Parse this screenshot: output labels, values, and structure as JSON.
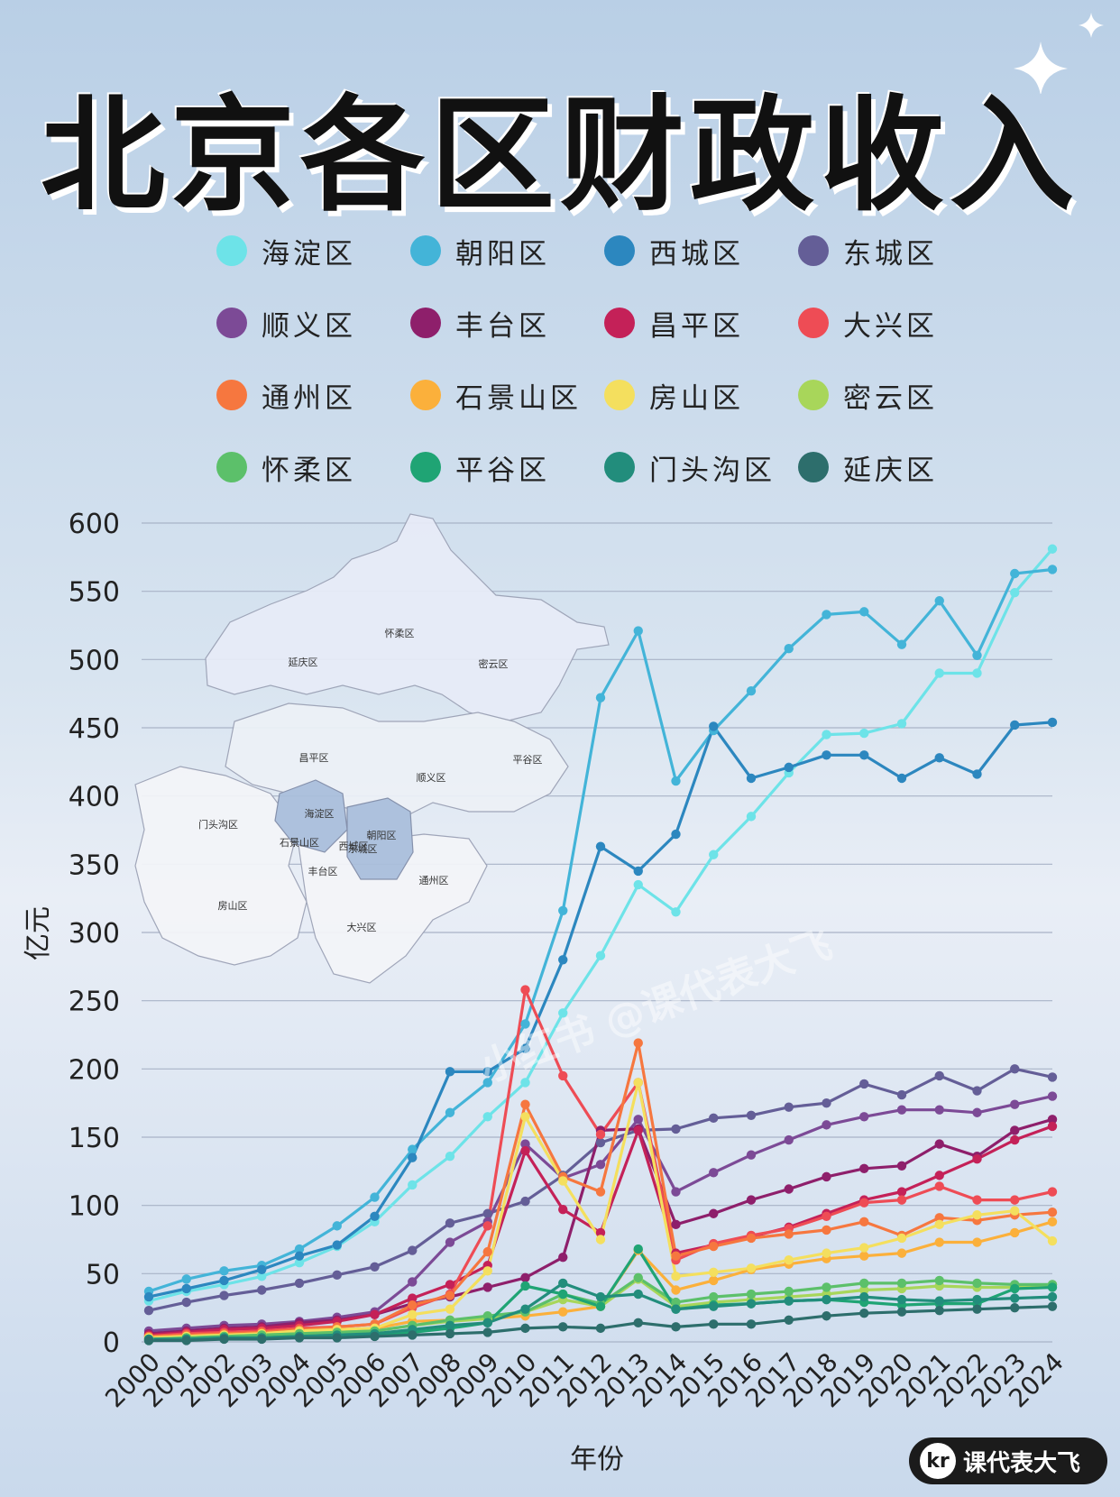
{
  "title": "北京各区财政收入",
  "watermark": "小红书 @课代表大飞",
  "logo": {
    "badge": "kr",
    "brand": "课代表大飞"
  },
  "map_labels": [
    "延庆区",
    "怀柔区",
    "密云区",
    "昌平区",
    "平谷区",
    "顺义区",
    "门头沟区",
    "海淀区",
    "朝阳区",
    "石景山区",
    "西城区",
    "东城区",
    "丰台区",
    "通州区",
    "房山区",
    "大兴区"
  ],
  "chart_data": {
    "type": "line",
    "xlabel": "年份",
    "ylabel": "亿元",
    "ylim": [
      0,
      600
    ],
    "yticks": [
      0,
      50,
      100,
      150,
      200,
      250,
      300,
      350,
      400,
      450,
      500,
      550,
      600
    ],
    "grid": true,
    "legend_position": "top",
    "x": [
      "2000",
      "2001",
      "2002",
      "2003",
      "2004",
      "2005",
      "2006",
      "2007",
      "2008",
      "2009",
      "2010",
      "2011",
      "2012",
      "2013",
      "2014",
      "2015",
      "2016",
      "2017",
      "2018",
      "2019",
      "2020",
      "2021",
      "2022",
      "2023",
      "2024"
    ],
    "series": [
      {
        "name": "海淀区",
        "color": "#6de3e8",
        "values": [
          30,
          37,
          42,
          48,
          58,
          70,
          88,
          115,
          136,
          165,
          190,
          241,
          283,
          335,
          315,
          357,
          385,
          417,
          445,
          446,
          453,
          490,
          490,
          549,
          581
        ]
      },
      {
        "name": "朝阳区",
        "color": "#43b4d8",
        "values": [
          37,
          46,
          52,
          56,
          68,
          85,
          106,
          141,
          168,
          190,
          233,
          316,
          472,
          521,
          411,
          448,
          477,
          508,
          533,
          535,
          511,
          543,
          503,
          563,
          566
        ]
      },
      {
        "name": "西城区",
        "color": "#2c87bf",
        "values": [
          33,
          39,
          45,
          53,
          63,
          71,
          92,
          135,
          198,
          198,
          215,
          280,
          363,
          345,
          372,
          451,
          413,
          421,
          430,
          430,
          413,
          428,
          416,
          452,
          454
        ]
      },
      {
        "name": "东城区",
        "color": "#645e97",
        "values": [
          23,
          29,
          34,
          38,
          43,
          49,
          55,
          67,
          87,
          94,
          103,
          122,
          146,
          155,
          156,
          164,
          166,
          172,
          175,
          189,
          181,
          195,
          184,
          200,
          194
        ]
      },
      {
        "name": "顺义区",
        "color": "#7c4a96",
        "values": [
          8,
          10,
          12,
          13,
          15,
          18,
          22,
          44,
          73,
          88,
          145,
          120,
          130,
          163,
          110,
          124,
          137,
          148,
          159,
          165,
          170,
          170,
          168,
          174,
          180
        ]
      },
      {
        "name": "丰台区",
        "color": "#8e1f6b",
        "values": [
          6,
          8,
          10,
          11,
          14,
          16,
          20,
          28,
          33,
          40,
          47,
          62,
          155,
          156,
          86,
          94,
          104,
          112,
          121,
          127,
          129,
          145,
          136,
          155,
          163
        ]
      },
      {
        "name": "昌平区",
        "color": "#c42158",
        "values": [
          5,
          7,
          9,
          10,
          12,
          15,
          20,
          32,
          42,
          56,
          140,
          97,
          80,
          155,
          65,
          71,
          77,
          84,
          94,
          104,
          110,
          122,
          134,
          148,
          158
        ]
      },
      {
        "name": "大兴区",
        "color": "#ee4c55",
        "values": [
          4,
          6,
          7,
          8,
          10,
          11,
          13,
          25,
          35,
          85,
          258,
          195,
          152,
          190,
          60,
          72,
          78,
          83,
          92,
          102,
          104,
          114,
          104,
          104,
          110
        ]
      },
      {
        "name": "通州区",
        "color": "#f6773f",
        "values": [
          4,
          5,
          6,
          7,
          9,
          11,
          13,
          27,
          34,
          66,
          174,
          121,
          110,
          219,
          63,
          70,
          76,
          79,
          82,
          88,
          78,
          91,
          89,
          93,
          95
        ]
      },
      {
        "name": "石景山区",
        "color": "#fbb03b",
        "values": [
          3,
          4,
          5,
          6,
          8,
          9,
          10,
          15,
          16,
          17,
          19,
          22,
          26,
          67,
          38,
          45,
          53,
          57,
          61,
          63,
          65,
          73,
          73,
          80,
          88
        ]
      },
      {
        "name": "房山区",
        "color": "#f4df5e",
        "values": [
          3,
          4,
          5,
          6,
          8,
          9,
          10,
          20,
          24,
          52,
          165,
          118,
          75,
          190,
          48,
          51,
          54,
          60,
          65,
          69,
          76,
          86,
          93,
          96,
          74
        ]
      },
      {
        "name": "密云区",
        "color": "#a8d65a",
        "values": [
          2,
          3,
          4,
          5,
          6,
          7,
          8,
          12,
          15,
          17,
          22,
          31,
          26,
          46,
          26,
          29,
          31,
          33,
          35,
          38,
          39,
          41,
          40,
          40,
          42
        ]
      },
      {
        "name": "怀柔区",
        "color": "#5cc06a",
        "values": [
          2,
          3,
          4,
          5,
          6,
          7,
          8,
          12,
          16,
          19,
          22,
          35,
          28,
          47,
          29,
          33,
          35,
          37,
          40,
          43,
          43,
          45,
          43,
          42,
          42
        ]
      },
      {
        "name": "平谷区",
        "color": "#1fa474",
        "values": [
          1,
          2,
          3,
          3,
          4,
          4,
          5,
          7,
          10,
          14,
          41,
          35,
          26,
          68,
          24,
          27,
          28,
          30,
          31,
          29,
          27,
          28,
          28,
          39,
          40
        ]
      },
      {
        "name": "门头沟区",
        "color": "#228d7c",
        "values": [
          2,
          2,
          3,
          3,
          4,
          5,
          6,
          9,
          12,
          14,
          24,
          43,
          33,
          35,
          24,
          26,
          28,
          30,
          31,
          33,
          31,
          30,
          31,
          32,
          33
        ]
      },
      {
        "name": "延庆区",
        "color": "#2d6e6c",
        "values": [
          1,
          1,
          2,
          2,
          3,
          3,
          4,
          5,
          6,
          7,
          10,
          11,
          10,
          14,
          11,
          13,
          13,
          16,
          19,
          21,
          22,
          23,
          24,
          25,
          26
        ]
      }
    ]
  }
}
